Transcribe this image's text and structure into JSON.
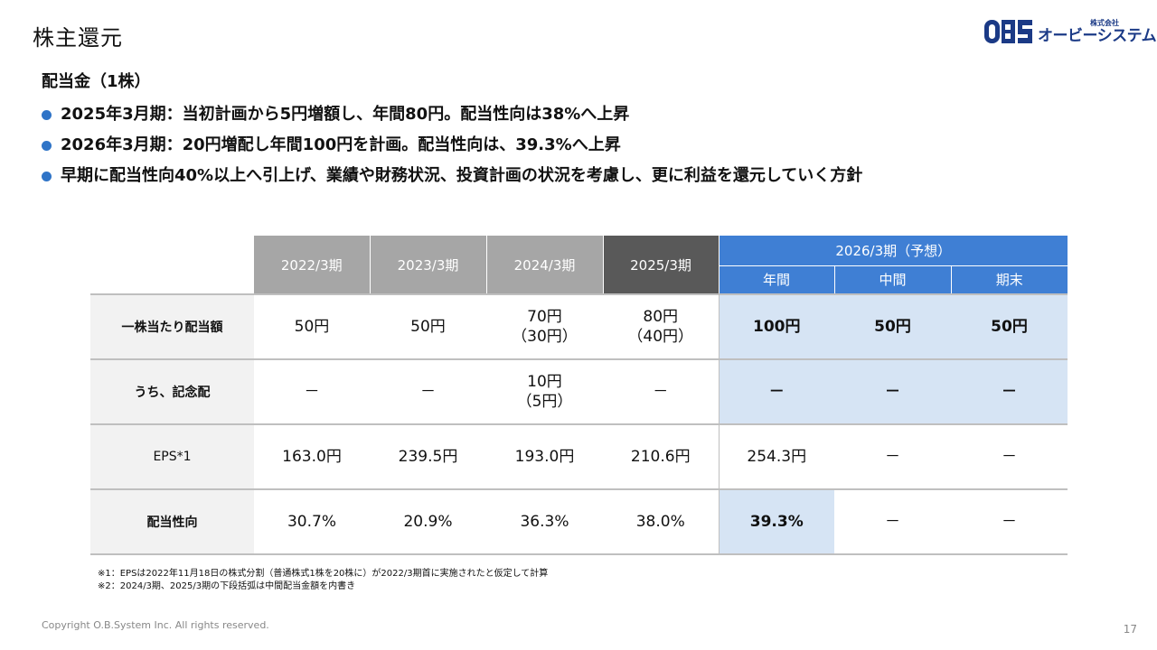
{
  "slide": {
    "title": "株主還元",
    "logo": {
      "sub": "株式会社",
      "name": "オービーシステム",
      "mark": "OBS"
    },
    "heading": "配当金（1株）",
    "bullets": [
      "2025年3月期：当初計画から5円増額し、年間80円。配当性向は38%へ上昇",
      "2026年3月期：20円増配し年間100円を計画。配当性向は、39.3%へ上昇",
      "早期に配当性向40%以上へ引上げ、業績や財務状況、投資計画の状況を考慮し、更に利益を還元していく方針"
    ],
    "footnotes": [
      "※1：EPSは2022年11月18日の株式分割（普通株式1株を20株に）が2022/3期首に実施されたと仮定して計算",
      "※2：2024/3期、2025/3期の下段括弧は中間配当金額を内書き"
    ],
    "copyright": "Copyright O.B.System Inc. All rights reserved.",
    "page_number": "17"
  },
  "table": {
    "headers": {
      "y2022": "2022/3期",
      "y2023": "2023/3期",
      "y2024": "2024/3期",
      "y2025": "2025/3期",
      "y2026": "2026/3期（予想）",
      "annual": "年間",
      "interim": "中間",
      "yearend": "期末"
    },
    "rows": [
      {
        "label": "一株当たり配当額",
        "cells": [
          "50円",
          "50円",
          "70円",
          "80円",
          "100円",
          "50円",
          "50円"
        ],
        "sub": [
          "",
          "",
          "（30円）",
          "（40円）",
          "",
          "",
          ""
        ]
      },
      {
        "label": "うち、記念配",
        "cells": [
          "－",
          "－",
          "10円",
          "－",
          "－",
          "－",
          "－"
        ],
        "sub": [
          "",
          "",
          "（5円）",
          "",
          "",
          "",
          ""
        ]
      },
      {
        "label": "EPS*1",
        "cells": [
          "163.0円",
          "239.5円",
          "193.0円",
          "210.6円",
          "254.3円",
          "－",
          "－"
        ]
      },
      {
        "label": "配当性向",
        "cells": [
          "30.7%",
          "20.9%",
          "36.3%",
          "38.0%",
          "39.3%",
          "－",
          "－"
        ]
      }
    ]
  }
}
